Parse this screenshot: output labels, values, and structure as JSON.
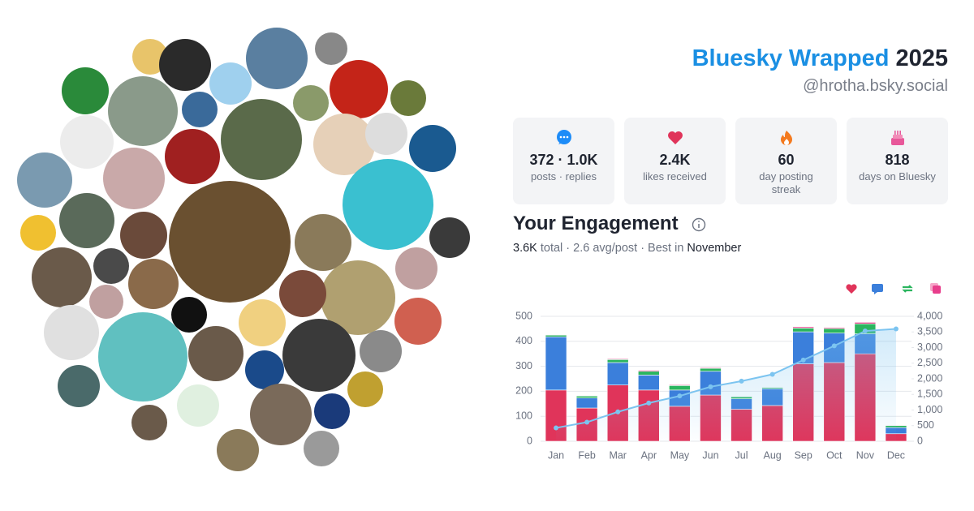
{
  "header": {
    "brand": "Bluesky Wrapped",
    "year": "2025",
    "handle": "@hrotha.bsky.social"
  },
  "stats": [
    {
      "value": "372 · 1.0K",
      "label": "posts · replies"
    },
    {
      "value": "2.4K",
      "label": "likes received"
    },
    {
      "value": "60",
      "label": "day posting streak"
    },
    {
      "value": "818",
      "label": "days on Bluesky"
    }
  ],
  "engagement": {
    "title": "Your Engagement",
    "total_value": "3.6K",
    "summary": "total · 2.6 avg/post · Best in",
    "best_month": "November"
  },
  "chart_data": {
    "type": "bar",
    "stacked": true,
    "categories": [
      "Jan",
      "Feb",
      "Mar",
      "Apr",
      "May",
      "Jun",
      "Jul",
      "Aug",
      "Sep",
      "Oct",
      "Nov",
      "Dec"
    ],
    "series": [
      {
        "color": "#e0345a",
        "values": [
          205,
          133,
          225,
          205,
          140,
          185,
          128,
          143,
          310,
          315,
          350,
          30
        ]
      },
      {
        "color": "#3b7fdb",
        "values": [
          213,
          40,
          90,
          60,
          65,
          95,
          42,
          67,
          128,
          118,
          80,
          25
        ]
      },
      {
        "color": "#2bb55f",
        "values": [
          7,
          8,
          12,
          15,
          18,
          12,
          8,
          5,
          15,
          18,
          40,
          8
        ]
      },
      {
        "color": "#e83e8c",
        "values": [
          2,
          2,
          3,
          4,
          3,
          3,
          2,
          2,
          5,
          4,
          6,
          2
        ]
      },
      {
        "color": "#7cc4f0",
        "type": "line",
        "axis": "y2",
        "values": [
          427,
          610,
          940,
          1224,
          1450,
          1745,
          1925,
          2142,
          2600,
          3055,
          3531,
          3596
        ]
      }
    ],
    "ylim": [
      0,
      500
    ],
    "yticks": [
      0,
      100,
      200,
      300,
      400,
      500
    ],
    "y2lim": [
      0,
      4000
    ],
    "y2ticks": [
      0,
      500,
      {
        "value": 1000,
        "label": "1,000"
      },
      {
        "value": 1500,
        "label": "1,500"
      },
      {
        "value": 2000,
        "label": "2,000"
      },
      {
        "value": 2500,
        "label": "2,500"
      },
      {
        "value": 3000,
        "label": "3,000"
      },
      {
        "value": 3500,
        "label": "3,500"
      },
      {
        "value": 4000,
        "label": "4,000"
      }
    ],
    "grid": true
  }
}
